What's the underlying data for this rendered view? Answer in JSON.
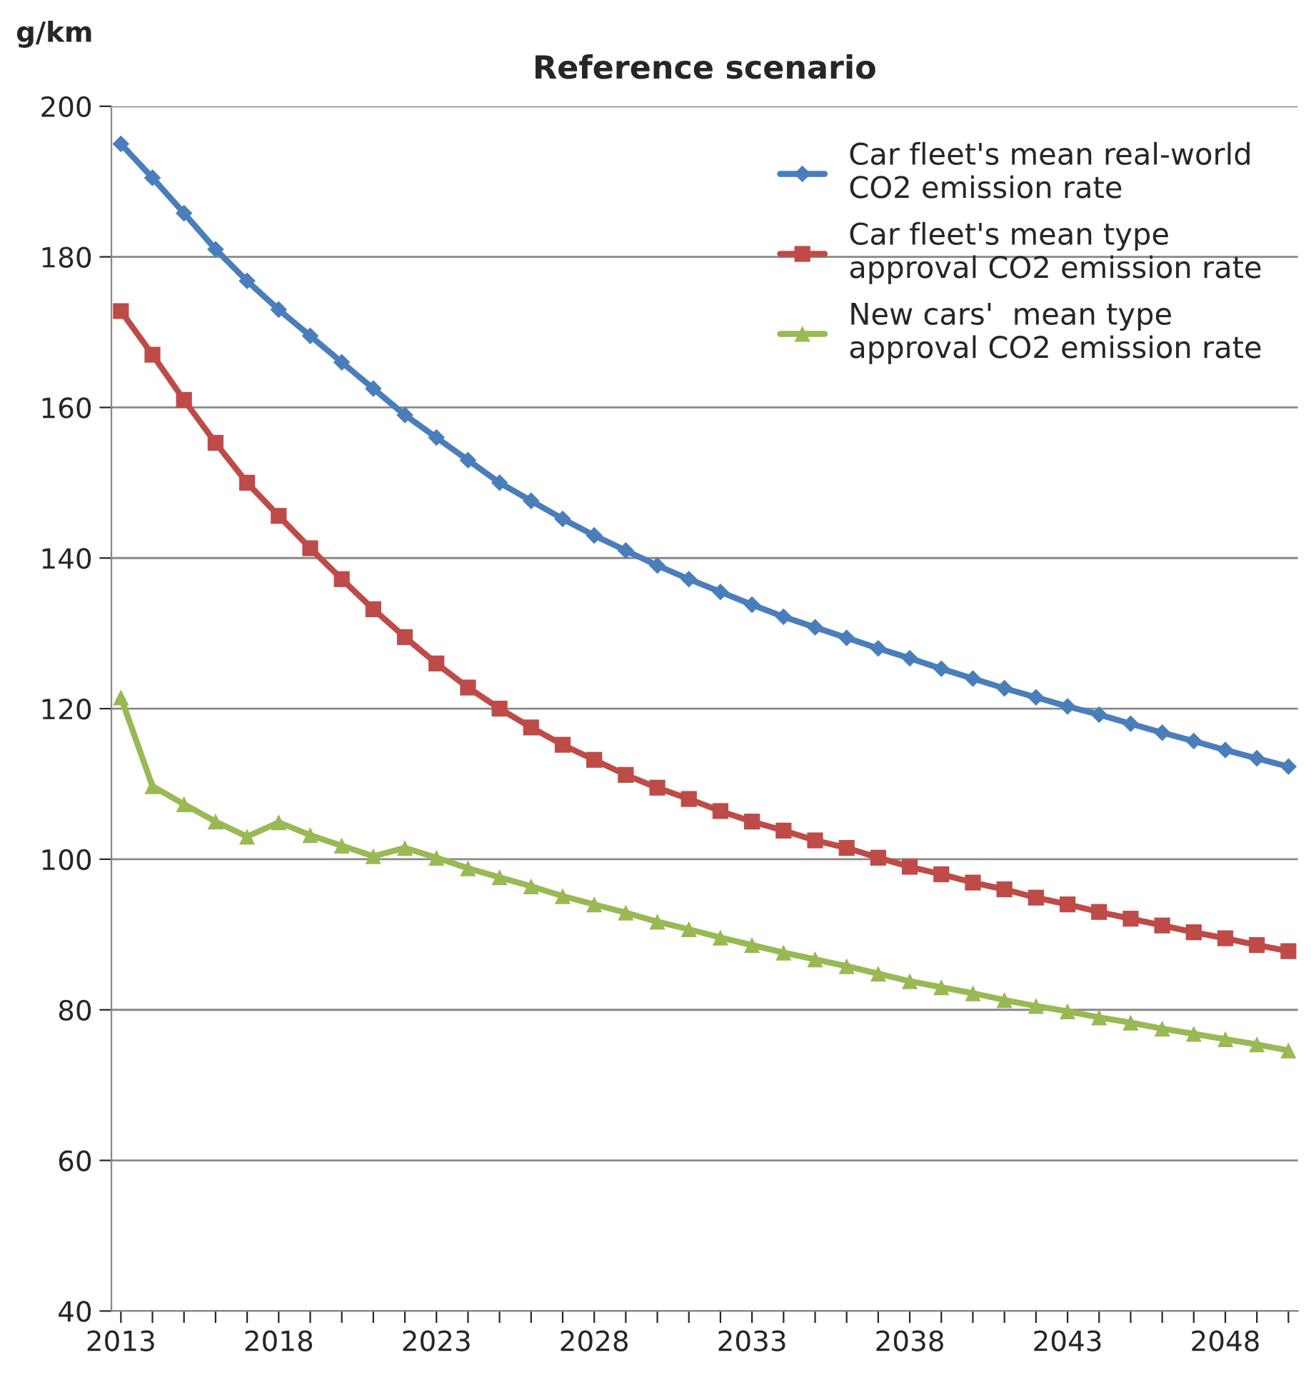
{
  "chart_data": {
    "type": "line",
    "title": "Reference scenario",
    "ylabel": "g/km",
    "categories": [
      "2013",
      null,
      null,
      null,
      null,
      "2018",
      null,
      null,
      null,
      null,
      "2023",
      null,
      null,
      null,
      null,
      "2028",
      null,
      null,
      null,
      null,
      "2033",
      null,
      null,
      null,
      null,
      "2038",
      null,
      null,
      null,
      null,
      "2043",
      null,
      null,
      null,
      null,
      "2048",
      null,
      null
    ],
    "series": [
      {
        "name": "Car fleet's mean real-world\nCO2 emission rate",
        "color": "#4a7ebb",
        "marker": "diamond",
        "values": [
          195,
          190.5,
          185.8,
          181,
          176.8,
          173,
          169.5,
          166,
          162.5,
          159,
          156,
          153,
          150,
          147.6,
          145.2,
          143,
          141,
          139,
          137.2,
          135.5,
          133.8,
          132.2,
          130.8,
          129.4,
          128,
          126.7,
          125.3,
          124,
          122.7,
          121.5,
          120.3,
          119.2,
          118,
          116.8,
          115.7,
          114.5,
          113.4,
          112.3
        ]
      },
      {
        "name": "Car fleet's mean type\napproval CO2 emission rate",
        "color": "#be4b48",
        "marker": "square",
        "values": [
          172.8,
          167,
          161,
          155.3,
          150,
          145.6,
          141.3,
          137.2,
          133.2,
          129.5,
          126,
          122.8,
          120,
          117.5,
          115.2,
          113.2,
          111.2,
          109.5,
          108,
          106.4,
          105,
          103.8,
          102.5,
          101.5,
          100.2,
          99,
          98,
          96.9,
          96,
          94.9,
          94,
          93,
          92.1,
          91.2,
          90.3,
          89.5,
          88.6,
          87.8
        ]
      },
      {
        "name": "New cars'  mean type\napproval CO2 emission rate",
        "color": "#98b954",
        "marker": "triangle",
        "values": [
          121.5,
          109.7,
          107.3,
          105,
          103,
          104.9,
          103.2,
          101.8,
          100.4,
          101.5,
          100.2,
          98.8,
          97.6,
          96.4,
          95.1,
          94,
          92.9,
          91.7,
          90.7,
          89.6,
          88.6,
          87.6,
          86.7,
          85.8,
          84.8,
          83.8,
          83,
          82.2,
          81.3,
          80.5,
          79.8,
          79,
          78.3,
          77.5,
          76.8,
          76.1,
          75.4,
          74.6
        ]
      }
    ],
    "ylim": [
      40,
      200
    ],
    "yticks": [
      40,
      60,
      80,
      100,
      120,
      140,
      160,
      180,
      200
    ],
    "grid": "y",
    "legend": "top right",
    "line_style": "solid"
  }
}
